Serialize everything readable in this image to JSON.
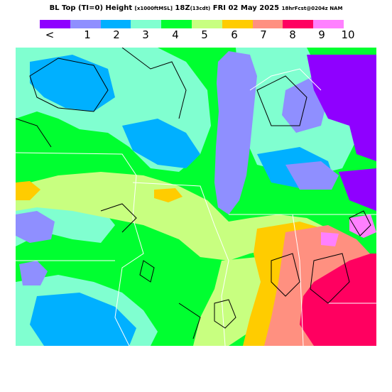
{
  "title": {
    "main": "BL Top (TI=0) Height",
    "units": "[x1000ftMSL]",
    "time": "18Z",
    "local_time": "(13cdt)",
    "date": "FRI 02 May 2025",
    "forecast": "18hrFcst@0204z NAM"
  },
  "legend": {
    "labels": [
      "<",
      "1",
      "2",
      "3",
      "4",
      "5",
      "6",
      "7",
      "8",
      "9",
      "10"
    ],
    "colors": [
      "#8f00ff",
      "#8f8fff",
      "#00b0ff",
      "#80ffd0",
      "#00ff30",
      "#c8ff80",
      "#ffcc00",
      "#ff9080",
      "#ff0060",
      "#ff80ff"
    ]
  },
  "map_colors": {
    "background": "#00ff30",
    "lake": "#8f8fff",
    "boundary": "#000000",
    "state_line": "#ffffff"
  }
}
